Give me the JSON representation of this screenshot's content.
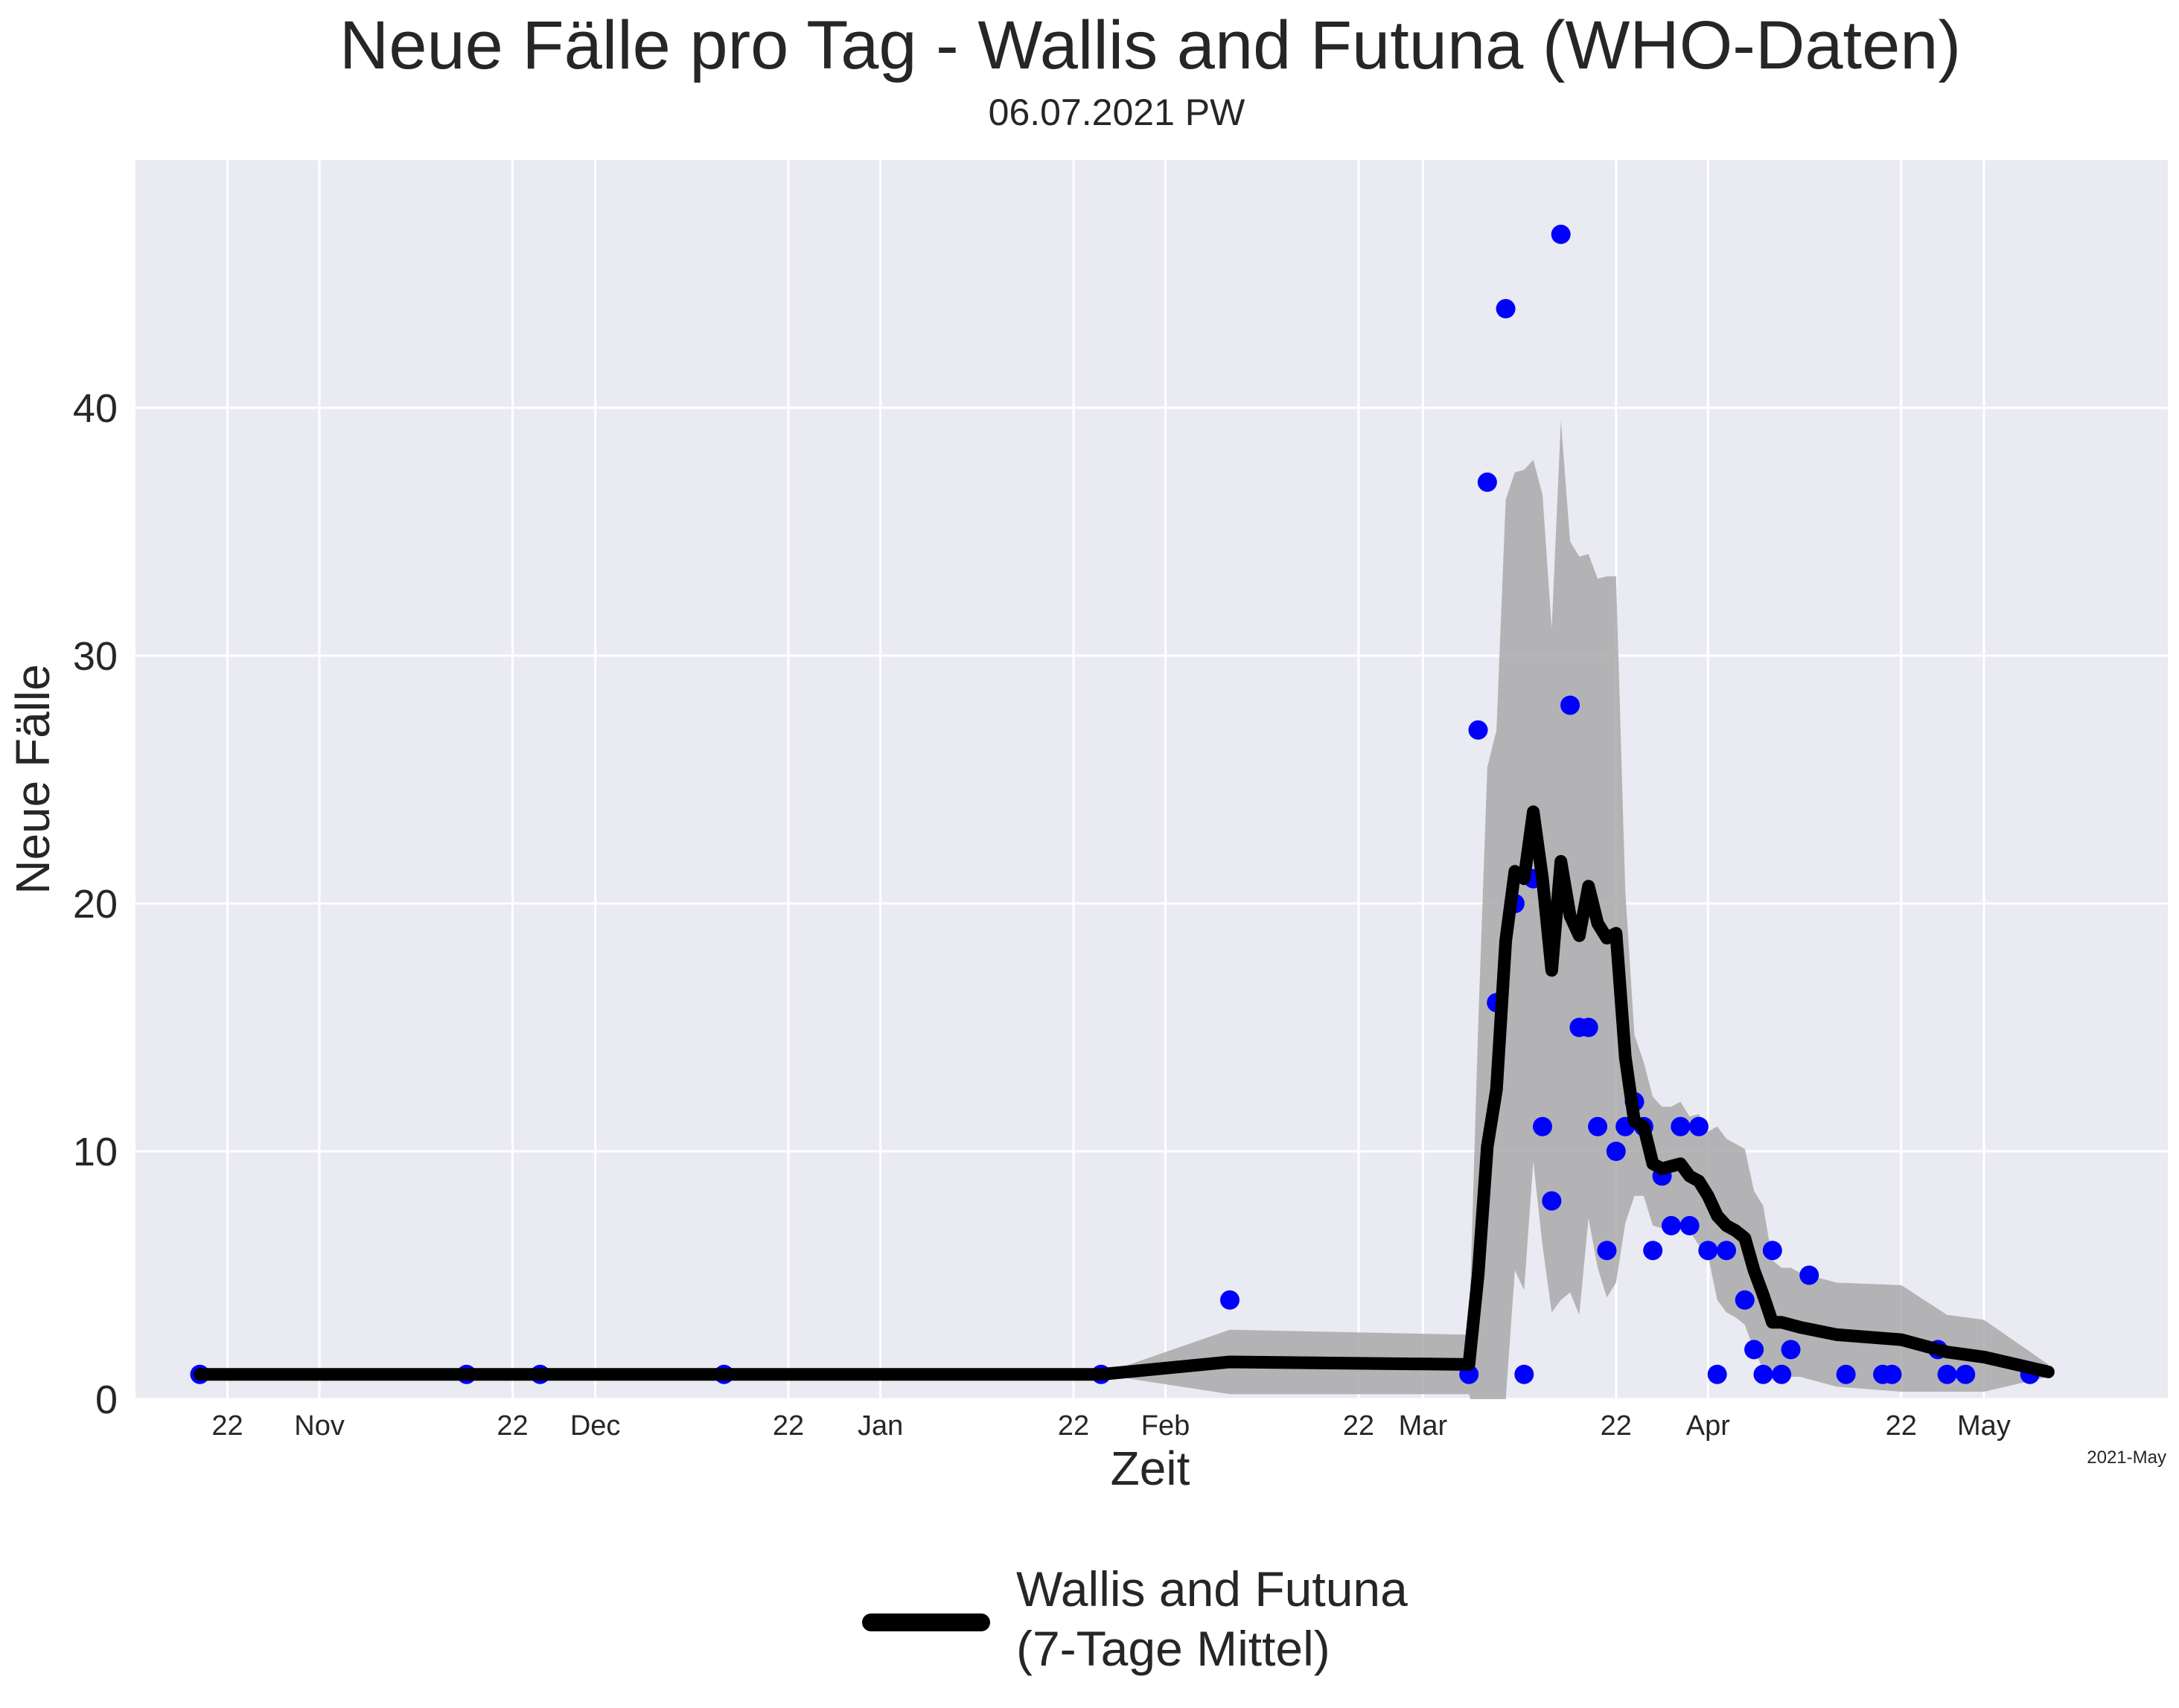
{
  "chart_data": {
    "type": "line",
    "title": "Neue Fälle pro Tag - Wallis and Futuna (WHO-Daten)",
    "subtitle": "06.07.2021 PW",
    "xlabel": "Zeit",
    "ylabel": "Neue Fälle",
    "corner_label": "2021-May",
    "ylim": [
      0,
      50
    ],
    "yticks": [
      0,
      10,
      20,
      30,
      40
    ],
    "grid": true,
    "legend_position": "bottom-center",
    "x_range": [
      "2020-10-12",
      "2021-05-21"
    ],
    "x_ticks": [
      {
        "date": "2020-10-22",
        "label": "22"
      },
      {
        "date": "2020-11-01",
        "label": "Nov"
      },
      {
        "date": "2020-11-22",
        "label": "22"
      },
      {
        "date": "2020-12-01",
        "label": "Dec"
      },
      {
        "date": "2020-12-22",
        "label": "22"
      },
      {
        "date": "2021-01-01",
        "label": "Jan"
      },
      {
        "date": "2021-01-22",
        "label": "22"
      },
      {
        "date": "2021-02-01",
        "label": "Feb"
      },
      {
        "date": "2021-02-22",
        "label": "22"
      },
      {
        "date": "2021-03-01",
        "label": "Mar"
      },
      {
        "date": "2021-03-22",
        "label": "22"
      },
      {
        "date": "2021-04-01",
        "label": "Apr"
      },
      {
        "date": "2021-04-22",
        "label": "22"
      },
      {
        "date": "2021-05-01",
        "label": "May"
      }
    ],
    "series": [
      {
        "name": "Wallis and Futuna\n(7-Tage Mittel)",
        "color": "#000000",
        "points": [
          [
            "2020-10-19",
            1
          ],
          [
            "2021-01-25",
            1
          ],
          [
            "2021-02-08",
            1.5
          ],
          [
            "2021-03-06",
            1.4
          ],
          [
            "2021-03-07",
            5
          ],
          [
            "2021-03-08",
            10.2
          ],
          [
            "2021-03-09",
            12.5
          ],
          [
            "2021-03-10",
            18.5
          ],
          [
            "2021-03-11",
            21.3
          ],
          [
            "2021-03-12",
            21
          ],
          [
            "2021-03-13",
            23.7
          ],
          [
            "2021-03-14",
            21
          ],
          [
            "2021-03-15",
            17.3
          ],
          [
            "2021-03-16",
            21.7
          ],
          [
            "2021-03-17",
            19.5
          ],
          [
            "2021-03-18",
            18.7
          ],
          [
            "2021-03-19",
            20.7
          ],
          [
            "2021-03-20",
            19.2
          ],
          [
            "2021-03-21",
            18.6
          ],
          [
            "2021-03-22",
            18.8
          ],
          [
            "2021-03-23",
            13.8
          ],
          [
            "2021-03-24",
            11.2
          ],
          [
            "2021-03-25",
            11
          ],
          [
            "2021-03-26",
            9.5
          ],
          [
            "2021-03-27",
            9.3
          ],
          [
            "2021-03-28",
            9.4
          ],
          [
            "2021-03-29",
            9.5
          ],
          [
            "2021-03-30",
            9
          ],
          [
            "2021-03-31",
            8.8
          ],
          [
            "2021-04-01",
            8.2
          ],
          [
            "2021-04-02",
            7.4
          ],
          [
            "2021-04-03",
            7
          ],
          [
            "2021-04-04",
            6.8
          ],
          [
            "2021-04-05",
            6.5
          ],
          [
            "2021-04-06",
            5.2
          ],
          [
            "2021-04-07",
            4.2
          ],
          [
            "2021-04-08",
            3.1
          ],
          [
            "2021-04-09",
            3.1
          ],
          [
            "2021-04-10",
            3
          ],
          [
            "2021-04-11",
            2.9
          ],
          [
            "2021-04-15",
            2.6
          ],
          [
            "2021-04-22",
            2.4
          ],
          [
            "2021-04-27",
            1.9
          ],
          [
            "2021-05-01",
            1.7
          ],
          [
            "2021-05-08",
            1.1
          ]
        ]
      }
    ],
    "band": {
      "color": "#a9a9aa",
      "points": [
        [
          "2020-10-19",
          1,
          1
        ],
        [
          "2021-01-25",
          1,
          1
        ],
        [
          "2021-02-08",
          2.8,
          0.2
        ],
        [
          "2021-03-06",
          2.6,
          0.2
        ],
        [
          "2021-03-07",
          15,
          -1
        ],
        [
          "2021-03-08",
          25.5,
          -1
        ],
        [
          "2021-03-09",
          27,
          0
        ],
        [
          "2021-03-10",
          36.3,
          0
        ],
        [
          "2021-03-11",
          37.4,
          5.2
        ],
        [
          "2021-03-12",
          37.5,
          4.4
        ],
        [
          "2021-03-13",
          37.9,
          9.6
        ],
        [
          "2021-03-14",
          36.5,
          6.2
        ],
        [
          "2021-03-15",
          31.1,
          3.5
        ],
        [
          "2021-03-16",
          39.5,
          4
        ],
        [
          "2021-03-17",
          34.6,
          4.3
        ],
        [
          "2021-03-18",
          34,
          3.4
        ],
        [
          "2021-03-19",
          34.1,
          7.3
        ],
        [
          "2021-03-20",
          33.1,
          5.3
        ],
        [
          "2021-03-21",
          33.2,
          4.1
        ],
        [
          "2021-03-22",
          33.2,
          4.7
        ],
        [
          "2021-03-23",
          20.5,
          7.1
        ],
        [
          "2021-03-24",
          14.7,
          8.2
        ],
        [
          "2021-03-25",
          13.6,
          8.2
        ],
        [
          "2021-03-26",
          12.2,
          7
        ],
        [
          "2021-03-27",
          11.8,
          6.9
        ],
        [
          "2021-03-28",
          11.8,
          7
        ],
        [
          "2021-03-29",
          12,
          6.9
        ],
        [
          "2021-03-30",
          11.4,
          6.8
        ],
        [
          "2021-03-31",
          11.5,
          6.2
        ],
        [
          "2021-04-01",
          10.8,
          5.8
        ],
        [
          "2021-04-02",
          11,
          4
        ],
        [
          "2021-04-03",
          10.5,
          3.5
        ],
        [
          "2021-04-04",
          10.3,
          3.3
        ],
        [
          "2021-04-05",
          10.1,
          3
        ],
        [
          "2021-04-06",
          8.4,
          2
        ],
        [
          "2021-04-07",
          7.8,
          1.2
        ],
        [
          "2021-04-08",
          5.6,
          0.8
        ],
        [
          "2021-04-09",
          5.3,
          0.8
        ],
        [
          "2021-04-10",
          5.3,
          0.9
        ],
        [
          "2021-04-11",
          5.1,
          0.9
        ],
        [
          "2021-04-15",
          4.7,
          0.5
        ],
        [
          "2021-04-22",
          4.6,
          0.3
        ],
        [
          "2021-04-27",
          3.4,
          0.3
        ],
        [
          "2021-05-01",
          3.2,
          0.3
        ],
        [
          "2021-05-08",
          1.4,
          0.9
        ]
      ]
    },
    "scatter": {
      "color": "#0000ff",
      "points": [
        [
          "2020-10-19",
          1
        ],
        [
          "2020-11-17",
          1
        ],
        [
          "2020-11-25",
          1
        ],
        [
          "2020-12-15",
          1
        ],
        [
          "2021-01-25",
          1
        ],
        [
          "2021-02-08",
          4
        ],
        [
          "2021-03-06",
          1
        ],
        [
          "2021-03-07",
          27
        ],
        [
          "2021-03-08",
          37
        ],
        [
          "2021-03-09",
          16
        ],
        [
          "2021-03-10",
          44
        ],
        [
          "2021-03-11",
          20
        ],
        [
          "2021-03-12",
          1
        ],
        [
          "2021-03-13",
          21
        ],
        [
          "2021-03-14",
          11
        ],
        [
          "2021-03-15",
          8
        ],
        [
          "2021-03-16",
          47
        ],
        [
          "2021-03-17",
          28
        ],
        [
          "2021-03-18",
          15
        ],
        [
          "2021-03-19",
          15
        ],
        [
          "2021-03-20",
          11
        ],
        [
          "2021-03-21",
          6
        ],
        [
          "2021-03-22",
          10
        ],
        [
          "2021-03-23",
          11
        ],
        [
          "2021-03-24",
          12
        ],
        [
          "2021-03-25",
          11
        ],
        [
          "2021-03-26",
          6
        ],
        [
          "2021-03-27",
          9
        ],
        [
          "2021-03-28",
          7
        ],
        [
          "2021-03-29",
          11
        ],
        [
          "2021-03-30",
          7
        ],
        [
          "2021-03-31",
          11
        ],
        [
          "2021-04-01",
          6
        ],
        [
          "2021-04-02",
          1
        ],
        [
          "2021-04-03",
          6
        ],
        [
          "2021-04-05",
          4
        ],
        [
          "2021-04-06",
          2
        ],
        [
          "2021-04-07",
          1
        ],
        [
          "2021-04-08",
          6
        ],
        [
          "2021-04-09",
          1
        ],
        [
          "2021-04-10",
          2
        ],
        [
          "2021-04-12",
          5
        ],
        [
          "2021-04-16",
          1
        ],
        [
          "2021-04-20",
          1
        ],
        [
          "2021-04-21",
          1
        ],
        [
          "2021-04-26",
          2
        ],
        [
          "2021-04-27",
          1
        ],
        [
          "2021-04-29",
          1
        ],
        [
          "2021-05-06",
          1
        ]
      ]
    }
  }
}
